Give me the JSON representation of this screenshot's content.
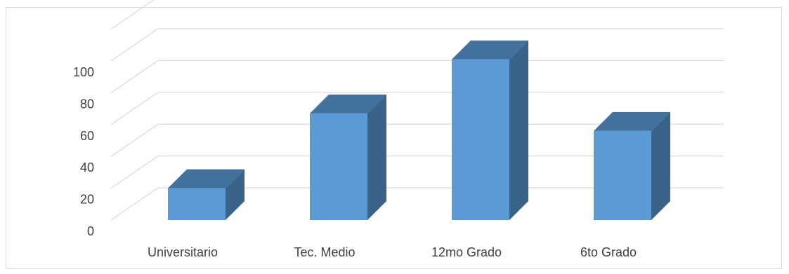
{
  "chart_data": {
    "type": "bar",
    "style": "3d-clustered-column",
    "categories": [
      "Universitario",
      "Tec. Medio",
      "12mo Grado",
      "6to Grado"
    ],
    "values": [
      20,
      67,
      101,
      56
    ],
    "yticks": [
      "0",
      "20",
      "40",
      "60",
      "80",
      "100"
    ],
    "ylim": [
      0,
      120
    ],
    "grid": true,
    "legend": "none",
    "colors": {
      "front": "#5b9bd5",
      "top": "#41719c",
      "side": "#3a6389",
      "grid": "#d9d9d9",
      "border": "#d9d9d9",
      "text": "#404040"
    }
  }
}
